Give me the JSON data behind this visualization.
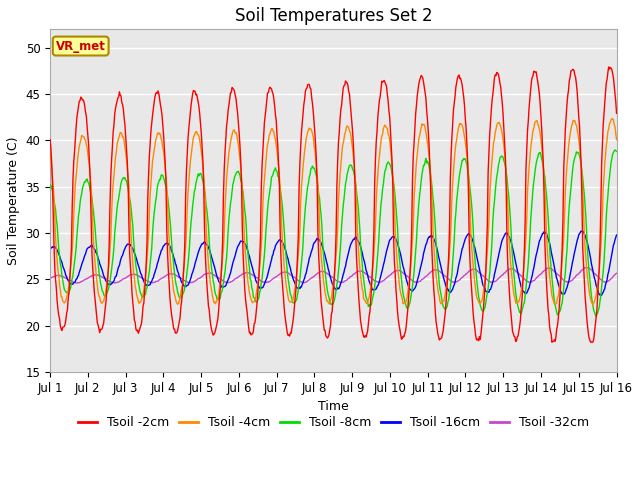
{
  "title": "Soil Temperatures Set 2",
  "xlabel": "Time",
  "ylabel": "Soil Temperature (C)",
  "ylim": [
    15,
    52
  ],
  "yticks": [
    15,
    20,
    25,
    30,
    35,
    40,
    45,
    50
  ],
  "xtick_labels": [
    "Jul 1",
    "Jul 2",
    "Jul 3",
    "Jul 4",
    "Jul 5",
    "Jul 6",
    "Jul 7",
    "Jul 8",
    "Jul 9",
    "Jul 10",
    "Jul 11",
    "Jul 12",
    "Jul 13",
    "Jul 14",
    "Jul 15",
    "Jul 16"
  ],
  "series_colors": [
    "#ff0000",
    "#ff8800",
    "#00dd00",
    "#0000ff",
    "#cc44cc"
  ],
  "series_labels": [
    "Tsoil -2cm",
    "Tsoil -4cm",
    "Tsoil -8cm",
    "Tsoil -16cm",
    "Tsoil -32cm"
  ],
  "annotation_text": "VR_met",
  "annotation_color": "#cc0000",
  "annotation_bg": "#ffff99",
  "annotation_border": "#aa8800",
  "bg_color": "#e8e8e8",
  "grid_color": "#ffffff",
  "title_fontsize": 12,
  "axis_label_fontsize": 9,
  "tick_fontsize": 8.5,
  "legend_fontsize": 9
}
